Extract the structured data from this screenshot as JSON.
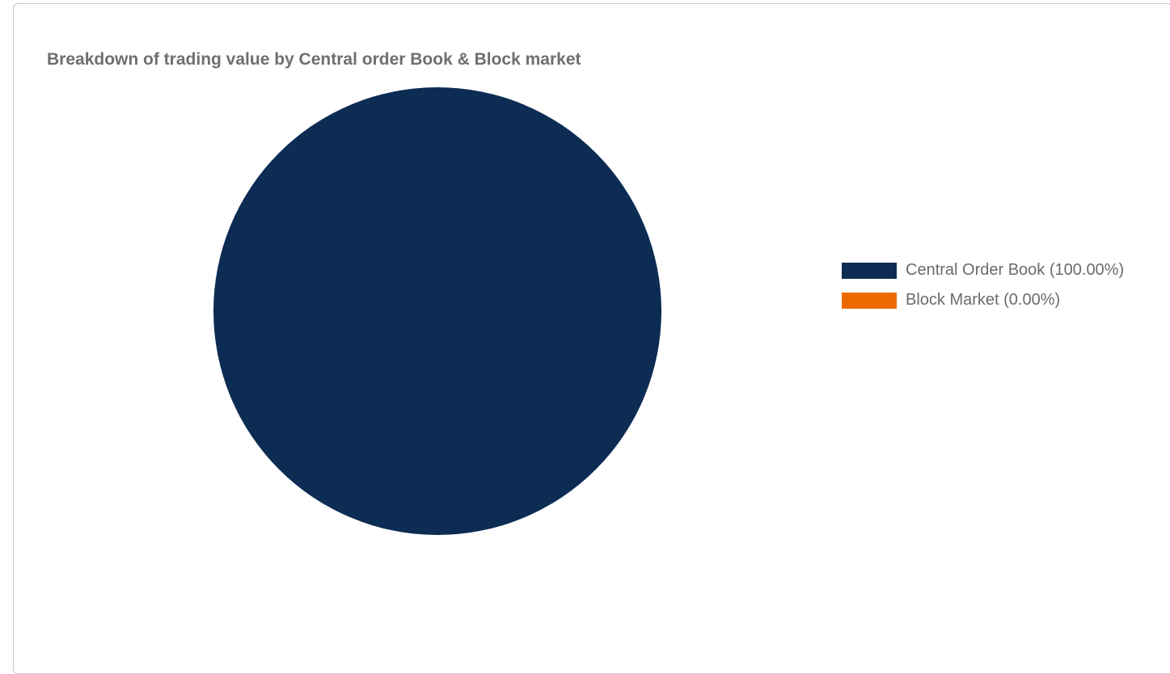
{
  "chart_data": {
    "type": "pie",
    "title": "Breakdown of trading value by Central order Book & Block market",
    "slices": [
      {
        "name": "Central Order Book",
        "value": 100.0,
        "color": "#0c2c54",
        "legend_label": "Central Order Book (100.00%)"
      },
      {
        "name": "Block Market",
        "value": 0.0,
        "color": "#ec6b00",
        "legend_label": "Block Market (0.00%)"
      }
    ],
    "legend_position": "right"
  }
}
